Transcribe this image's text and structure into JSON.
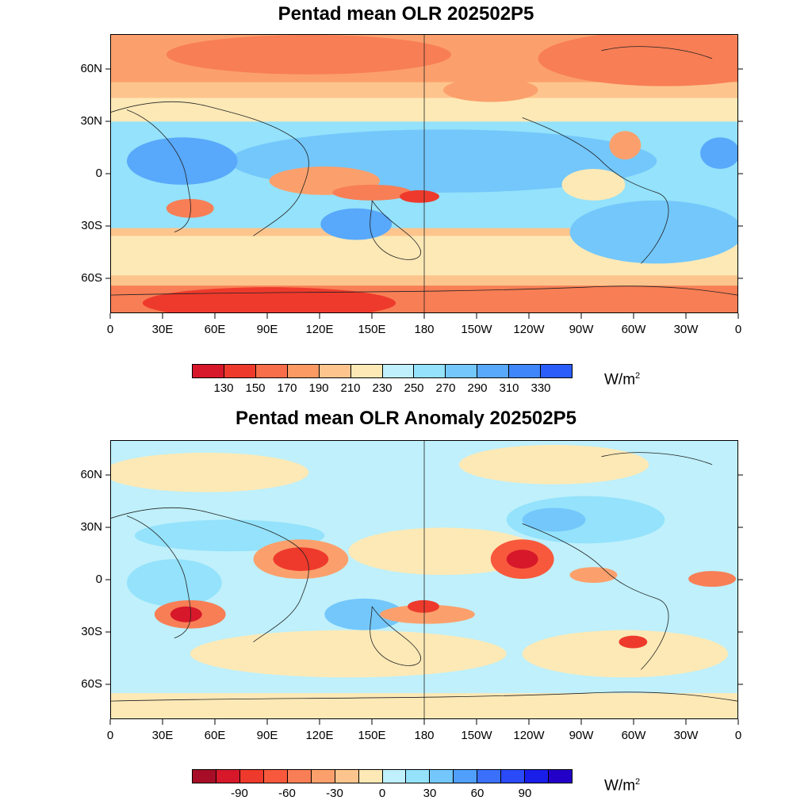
{
  "panels": [
    {
      "title": "Pentad mean OLR 202502P5",
      "colorbar_ticks": [
        "130",
        "150",
        "170",
        "190",
        "210",
        "230",
        "250",
        "270",
        "290",
        "310",
        "330"
      ],
      "colors": [
        "#d7182a",
        "#ee3a2c",
        "#f86e4a",
        "#fb9a63",
        "#fdc58d",
        "#fde9b6",
        "#bff0fb",
        "#94e2fb",
        "#73c7fb",
        "#58a8fb",
        "#3f86fb",
        "#2b5dfa"
      ],
      "unit": "W/m",
      "unit_sup": "2"
    },
    {
      "title": "Pentad mean OLR Anomaly 202502P5",
      "colorbar_ticks": [
        "-90",
        "-60",
        "-30",
        "0",
        "30",
        "60",
        "90"
      ],
      "colors": [
        "#a70d26",
        "#d7182a",
        "#ee3a2c",
        "#f8593c",
        "#f87e55",
        "#fba06c",
        "#fdc58d",
        "#fde9b6",
        "#bff0fb",
        "#94e2fb",
        "#73c7fb",
        "#4f9ffb",
        "#3a70fa",
        "#2b4af8",
        "#1a1ee9",
        "#2300c8"
      ],
      "unit": "W/m",
      "unit_sup": "2"
    }
  ],
  "y_ticks": [
    "60N",
    "30N",
    "0",
    "30S",
    "60S"
  ],
  "x_ticks": [
    "0",
    "30E",
    "60E",
    "90E",
    "120E",
    "150E",
    "180",
    "150W",
    "120W",
    "90W",
    "60W",
    "30W",
    "0"
  ]
}
